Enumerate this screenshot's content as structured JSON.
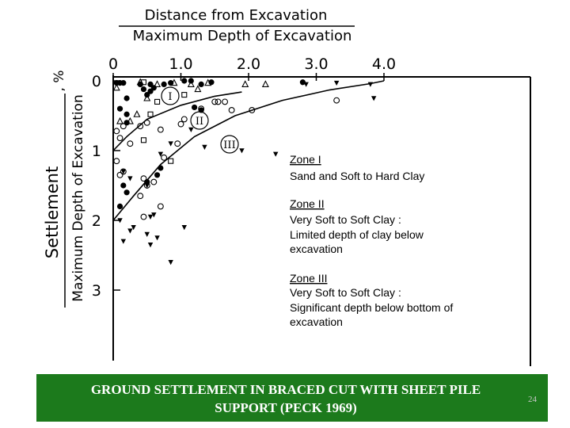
{
  "chart_data": {
    "type": "scatter",
    "x_title_numerator": "Distance from Excavation",
    "x_title_denominator": "Maximum Depth of Excavation",
    "y_title_line1": "Settlement",
    "y_title_line2": "Maximum Depth of Excavation",
    "y_title_unit": ", %",
    "x_ticks": [
      "0",
      "1.0",
      "2.0",
      "3.0",
      "4.0"
    ],
    "y_ticks": [
      "0",
      "1",
      "2",
      "3"
    ],
    "xlim": [
      0,
      6.1
    ],
    "ylim": [
      0,
      4
    ],
    "y_inverted": true,
    "grid": false,
    "zone_boundaries": [
      {
        "name": "I-II",
        "points": [
          [
            0,
            1.0
          ],
          [
            0.2,
            0.8
          ],
          [
            0.5,
            0.55
          ],
          [
            1.0,
            0.35
          ],
          [
            1.5,
            0.22
          ],
          [
            1.9,
            0.16
          ]
        ]
      },
      {
        "name": "II-III",
        "points": [
          [
            0,
            2.0
          ],
          [
            0.3,
            1.65
          ],
          [
            0.7,
            1.2
          ],
          [
            1.2,
            0.8
          ],
          [
            1.8,
            0.5
          ],
          [
            2.5,
            0.28
          ],
          [
            3.2,
            0.13
          ],
          [
            3.8,
            0.04
          ],
          [
            4.0,
            0.0
          ]
        ]
      }
    ],
    "zone_markers": [
      "I",
      "II",
      "III"
    ],
    "annotations": [
      {
        "title": "Zone I",
        "lines": [
          "Sand and Soft to Hard Clay"
        ]
      },
      {
        "title": "Zone II",
        "lines": [
          "Very Soft to Soft Clay :",
          "Limited depth of clay below",
          "excavation"
        ]
      },
      {
        "title": "Zone III",
        "lines": [
          "Very Soft to Soft Clay :",
          "Significant depth below bottom of",
          "excavation"
        ]
      }
    ],
    "series": [
      {
        "marker": "filled-circle",
        "points": [
          [
            0.05,
            0.03
          ],
          [
            0.1,
            0.03
          ],
          [
            0.15,
            0.03
          ],
          [
            0.4,
            0.05
          ],
          [
            0.55,
            0.05
          ],
          [
            0.6,
            0.1
          ],
          [
            0.75,
            0.05
          ],
          [
            0.85,
            0.03
          ],
          [
            1.05,
            0.0
          ],
          [
            1.15,
            0.0
          ],
          [
            1.3,
            0.05
          ],
          [
            1.45,
            0.02
          ],
          [
            0.45,
            0.12
          ],
          [
            0.55,
            0.15
          ],
          [
            0.5,
            0.2
          ],
          [
            0.2,
            0.25
          ],
          [
            1.2,
            0.38
          ],
          [
            1.3,
            0.42
          ],
          [
            0.1,
            0.4
          ],
          [
            0.2,
            0.48
          ],
          [
            0.2,
            0.6
          ],
          [
            0.15,
            1.5
          ],
          [
            0.5,
            1.45
          ],
          [
            0.1,
            1.8
          ],
          [
            0.2,
            1.6
          ],
          [
            0.7,
            1.25
          ],
          [
            0.65,
            1.35
          ],
          [
            2.8,
            0.02
          ]
        ]
      },
      {
        "marker": "open-circle",
        "points": [
          [
            0.15,
            0.65
          ],
          [
            0.05,
            0.72
          ],
          [
            0.25,
            0.9
          ],
          [
            0.1,
            0.82
          ],
          [
            0.4,
            0.65
          ],
          [
            0.5,
            0.6
          ],
          [
            0.7,
            0.7
          ],
          [
            1.05,
            0.55
          ],
          [
            1.0,
            0.62
          ],
          [
            1.3,
            0.4
          ],
          [
            1.55,
            0.3
          ],
          [
            1.65,
            0.3
          ],
          [
            1.75,
            0.42
          ],
          [
            2.05,
            0.42
          ],
          [
            0.15,
            1.3
          ],
          [
            0.05,
            1.15
          ],
          [
            0.5,
            1.5
          ],
          [
            0.4,
            1.65
          ],
          [
            0.1,
            1.35
          ],
          [
            0.45,
            1.4
          ],
          [
            0.75,
            1.1
          ],
          [
            0.95,
            0.9
          ],
          [
            0.6,
            1.45
          ],
          [
            1.5,
            0.3
          ],
          [
            3.3,
            0.28
          ],
          [
            0.45,
            1.95
          ],
          [
            0.7,
            1.8
          ]
        ]
      },
      {
        "marker": "open-triangle",
        "points": [
          [
            0.05,
            0.1
          ],
          [
            0.4,
            0.02
          ],
          [
            0.65,
            0.05
          ],
          [
            0.9,
            0.03
          ],
          [
            1.15,
            0.05
          ],
          [
            1.25,
            0.12
          ],
          [
            1.4,
            0.03
          ],
          [
            1.95,
            0.05
          ],
          [
            2.25,
            0.05
          ],
          [
            0.5,
            0.25
          ],
          [
            0.1,
            0.58
          ],
          [
            0.25,
            0.58
          ],
          [
            0.35,
            0.48
          ]
        ]
      },
      {
        "marker": "open-square",
        "points": [
          [
            0.45,
            0.02
          ],
          [
            0.65,
            0.3
          ],
          [
            0.55,
            0.48
          ],
          [
            1.05,
            0.2
          ],
          [
            0.45,
            0.85
          ],
          [
            0.85,
            1.15
          ]
        ]
      },
      {
        "marker": "filled-triangle",
        "points": [
          [
            1.15,
            0.7
          ],
          [
            1.35,
            0.95
          ],
          [
            1.9,
            1.0
          ],
          [
            2.85,
            0.05
          ],
          [
            3.3,
            0.03
          ],
          [
            3.8,
            0.05
          ],
          [
            3.85,
            0.25
          ],
          [
            2.4,
            1.05
          ],
          [
            0.5,
            1.5
          ],
          [
            0.25,
            1.4
          ],
          [
            0.15,
            1.3
          ],
          [
            0.55,
            1.95
          ],
          [
            0.1,
            2.0
          ],
          [
            0.3,
            2.1
          ],
          [
            0.25,
            2.15
          ],
          [
            0.5,
            2.2
          ],
          [
            0.15,
            2.3
          ],
          [
            0.55,
            2.35
          ],
          [
            0.65,
            2.25
          ],
          [
            1.05,
            2.1
          ],
          [
            0.85,
            2.6
          ],
          [
            0.6,
            1.92
          ],
          [
            0.7,
            1.05
          ],
          [
            0.85,
            0.9
          ]
        ]
      }
    ]
  },
  "caption": {
    "line1": "GROUND SETTLEMENT IN BRACED CUT WITH SHEET PILE",
    "line2": "SUPPORT (PECK 1969)",
    "page_number": "24"
  }
}
